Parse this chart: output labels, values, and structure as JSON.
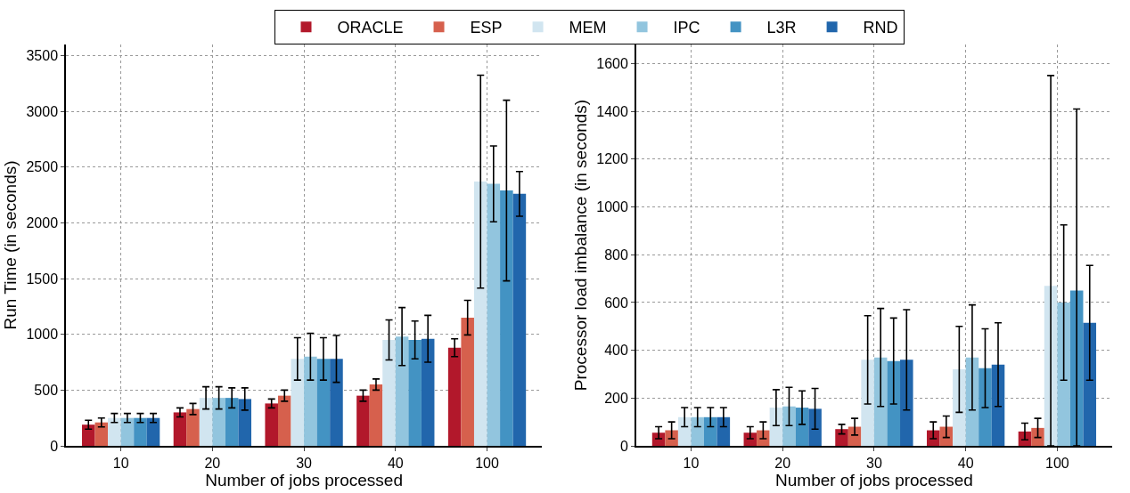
{
  "chart_data": [
    {
      "type": "bar",
      "xlabel": "Number of jobs processed",
      "ylabel": "Run Time (in seconds)",
      "categories": [
        "10",
        "20",
        "30",
        "40",
        "100"
      ],
      "ylim": [
        0,
        3600
      ],
      "yticks": [
        0,
        500,
        1000,
        1500,
        2000,
        2500,
        3000,
        3500
      ],
      "grid": true,
      "legend": "top",
      "series": [
        {
          "name": "ORACLE",
          "color": "#b2182b",
          "values": [
            190,
            300,
            380,
            450,
            880
          ],
          "errors": [
            40,
            40,
            40,
            50,
            80
          ]
        },
        {
          "name": "ESP",
          "color": "#d6604d",
          "values": [
            210,
            330,
            450,
            550,
            1150
          ],
          "errors": [
            40,
            50,
            50,
            50,
            155
          ]
        },
        {
          "name": "MEM",
          "color": "#d1e5f0",
          "values": [
            250,
            430,
            780,
            950,
            2370
          ],
          "errors": [
            40,
            100,
            190,
            180,
            955
          ]
        },
        {
          "name": "IPC",
          "color": "#92c5de",
          "values": [
            250,
            430,
            800,
            980,
            2350
          ],
          "errors": [
            40,
            100,
            210,
            260,
            340
          ]
        },
        {
          "name": "L3R",
          "color": "#4393c3",
          "values": [
            250,
            430,
            780,
            950,
            2290
          ],
          "errors": [
            40,
            90,
            190,
            170,
            810
          ]
        },
        {
          "name": "RND",
          "color": "#2166ac",
          "values": [
            250,
            420,
            780,
            960,
            2260
          ],
          "errors": [
            40,
            100,
            210,
            210,
            200
          ]
        }
      ]
    },
    {
      "type": "bar",
      "xlabel": "Number of jobs processed",
      "ylabel": "Processor load imbalance (in seconds)",
      "categories": [
        "10",
        "20",
        "30",
        "40",
        "100"
      ],
      "ylim": [
        0,
        1680
      ],
      "yticks": [
        0,
        200,
        400,
        600,
        800,
        1000,
        1200,
        1400,
        1600
      ],
      "grid": true,
      "series": [
        {
          "name": "ORACLE",
          "color": "#b2182b",
          "values": [
            55,
            55,
            70,
            65,
            60
          ],
          "errors": [
            25,
            25,
            20,
            35,
            35
          ]
        },
        {
          "name": "ESP",
          "color": "#d6604d",
          "values": [
            65,
            65,
            80,
            80,
            75
          ],
          "errors": [
            35,
            35,
            35,
            45,
            40
          ]
        },
        {
          "name": "MEM",
          "color": "#d1e5f0",
          "values": [
            120,
            160,
            360,
            320,
            670
          ],
          "errors": [
            40,
            75,
            185,
            180,
            [
              0,
              1550
            ]
          ]
        },
        {
          "name": "IPC",
          "color": "#92c5de",
          "values": [
            120,
            165,
            370,
            370,
            600
          ],
          "errors": [
            40,
            80,
            205,
            220,
            325
          ]
        },
        {
          "name": "L3R",
          "color": "#4393c3",
          "values": [
            120,
            160,
            355,
            325,
            650
          ],
          "errors": [
            40,
            70,
            180,
            165,
            [
              0,
              1410
            ]
          ]
        },
        {
          "name": "RND",
          "color": "#2166ac",
          "values": [
            120,
            155,
            360,
            340,
            515
          ],
          "errors": [
            40,
            85,
            210,
            175,
            240
          ]
        }
      ]
    }
  ]
}
